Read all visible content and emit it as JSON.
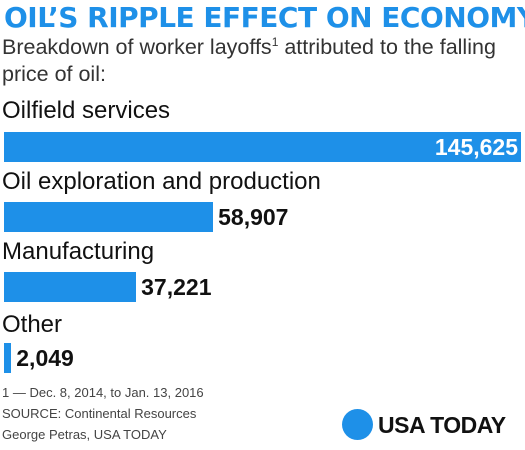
{
  "chart_data": {
    "type": "bar",
    "orientation": "horizontal",
    "title": "OIL’S RIPPLE EFFECT ON ECONOMY",
    "subtitle_main": "Breakdown of worker layoffs",
    "subtitle_sup": "1",
    "subtitle_rest": " attributed to the falling price of oil:",
    "categories": [
      "Oilfield services",
      "Oil exploration and production",
      "Manufacturing",
      "Other"
    ],
    "values": [
      145625,
      58907,
      37221,
      2049
    ],
    "value_labels": [
      "145,625",
      "58,907",
      "37,221",
      "2,049"
    ],
    "xlim": [
      0,
      145625
    ],
    "grid": false,
    "legend": "none",
    "bar_color": "#1e90e8",
    "value_label_color_inside": "#ffffff",
    "value_label_color_outside": "#111111"
  },
  "footnotes": {
    "note": "1 — Dec. 8, 2014, to Jan. 13, 2016",
    "source": "SOURCE:  Continental Resources",
    "credit": "George Petras, USA TODAY"
  },
  "logo": {
    "text": "USA TODAY",
    "icon": "blue-circle-icon",
    "color": "#1e90e8"
  }
}
